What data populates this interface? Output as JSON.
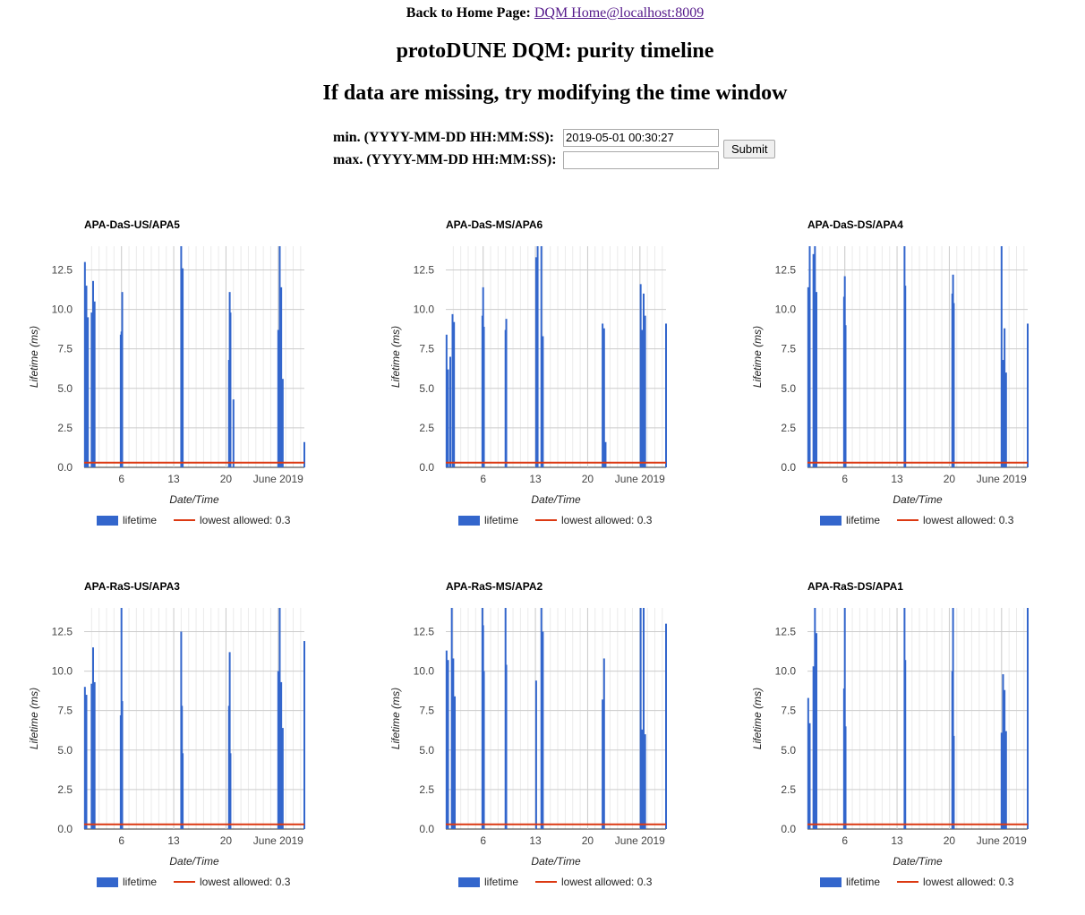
{
  "header": {
    "back_label": "Back to Home Page:",
    "home_link": "DQM Home@localhost:8009",
    "title": "protoDUNE DQM: purity timeline",
    "subtitle": "If data are missing, try modifying the time window"
  },
  "form": {
    "min_label": "min. (YYYY-MM-DD HH:MM:SS):",
    "min_value": "2019-05-01 00:30:27",
    "max_label": "max. (YYYY-MM-DD HH:MM:SS):",
    "max_value": "",
    "submit_label": "Submit"
  },
  "colors": {
    "lifetime": "#3366cc",
    "threshold": "#dc3912",
    "grid": "#cccccc"
  },
  "chart_data": [
    {
      "type": "bar",
      "title": "APA-DaS-US/APA5",
      "xlabel": "Date/Time",
      "ylabel": "Lifetime (ms)",
      "xlim": [
        1,
        30.5
      ],
      "ylim": [
        0,
        14
      ],
      "y_ticks": [
        0,
        2.5,
        5,
        7.5,
        10,
        12.5
      ],
      "x_ticks": [
        {
          "x": 6,
          "label": "6"
        },
        {
          "x": 13,
          "label": "13"
        },
        {
          "x": 20,
          "label": "20"
        },
        {
          "x": 27,
          "label": "June 2019"
        }
      ],
      "legend": [
        "lifetime",
        "lowest allowed: 0.3"
      ],
      "legend_position": "bottom",
      "grid": true,
      "threshold": 0.3,
      "series": [
        {
          "name": "lifetime",
          "x": [
            1.1,
            1.3,
            1.5,
            2.0,
            2.2,
            2.4,
            5.9,
            6.0,
            6.1,
            14.0,
            14.1,
            14.2,
            20.4,
            20.5,
            20.6,
            21.0,
            27.0,
            27.2,
            27.4,
            27.6,
            30.5
          ],
          "values": [
            13.0,
            11.5,
            9.5,
            9.8,
            11.8,
            10.5,
            8.4,
            8.6,
            11.1,
            14.0,
            10.8,
            12.6,
            6.8,
            11.1,
            9.8,
            4.3,
            8.7,
            14.0,
            11.4,
            5.6,
            1.6
          ]
        }
      ]
    },
    {
      "type": "bar",
      "title": "APA-DaS-MS/APA6",
      "xlabel": "Date/Time",
      "ylabel": "Lifetime (ms)",
      "xlim": [
        1,
        30.5
      ],
      "ylim": [
        0,
        14
      ],
      "y_ticks": [
        0,
        2.5,
        5,
        7.5,
        10,
        12.5
      ],
      "x_ticks": [
        {
          "x": 6,
          "label": "6"
        },
        {
          "x": 13,
          "label": "13"
        },
        {
          "x": 20,
          "label": "20"
        },
        {
          "x": 27,
          "label": "June 2019"
        }
      ],
      "legend": [
        "lifetime",
        "lowest allowed: 0.3"
      ],
      "legend_position": "bottom",
      "grid": true,
      "threshold": 0.3,
      "series": [
        {
          "name": "lifetime",
          "x": [
            1.1,
            1.3,
            1.6,
            1.9,
            2.1,
            5.9,
            6.0,
            6.1,
            9.0,
            9.1,
            13.1,
            13.3,
            13.8,
            14.0,
            22.0,
            22.2,
            22.4,
            27.1,
            27.3,
            27.5,
            27.7,
            30.5
          ],
          "values": [
            8.4,
            6.2,
            7.0,
            9.7,
            9.2,
            9.6,
            11.4,
            8.9,
            8.7,
            9.4,
            13.3,
            14.0,
            14.0,
            8.3,
            9.1,
            8.8,
            1.6,
            11.6,
            8.7,
            11.0,
            9.6,
            9.1
          ]
        }
      ]
    },
    {
      "type": "bar",
      "title": "APA-DaS-DS/APA4",
      "xlabel": "Date/Time",
      "ylabel": "Lifetime (ms)",
      "xlim": [
        1,
        30.5
      ],
      "ylim": [
        0,
        14
      ],
      "y_ticks": [
        0,
        2.5,
        5,
        7.5,
        10,
        12.5
      ],
      "x_ticks": [
        {
          "x": 6,
          "label": "6"
        },
        {
          "x": 13,
          "label": "13"
        },
        {
          "x": 20,
          "label": "20"
        },
        {
          "x": 27,
          "label": "June 2019"
        }
      ],
      "legend": [
        "lifetime",
        "lowest allowed: 0.3"
      ],
      "legend_position": "bottom",
      "grid": true,
      "threshold": 0.3,
      "series": [
        {
          "name": "lifetime",
          "x": [
            1.1,
            1.3,
            1.8,
            2.0,
            2.2,
            5.9,
            6.0,
            6.1,
            14.0,
            14.1,
            20.4,
            20.5,
            20.6,
            27.0,
            27.2,
            27.4,
            27.6,
            30.5
          ],
          "values": [
            11.4,
            14.0,
            13.5,
            14.0,
            11.1,
            10.8,
            12.1,
            9.0,
            14.0,
            11.5,
            11.0,
            12.2,
            10.4,
            14.0,
            6.8,
            8.8,
            6.0,
            9.1
          ]
        }
      ]
    },
    {
      "type": "bar",
      "title": "APA-RaS-US/APA3",
      "xlabel": "Date/Time",
      "ylabel": "Lifetime (ms)",
      "xlim": [
        1,
        30.5
      ],
      "ylim": [
        0,
        14
      ],
      "y_ticks": [
        0,
        2.5,
        5,
        7.5,
        10,
        12.5
      ],
      "x_ticks": [
        {
          "x": 6,
          "label": "6"
        },
        {
          "x": 13,
          "label": "13"
        },
        {
          "x": 20,
          "label": "20"
        },
        {
          "x": 27,
          "label": "June 2019"
        }
      ],
      "legend": [
        "lifetime",
        "lowest allowed: 0.3"
      ],
      "legend_position": "bottom",
      "grid": true,
      "threshold": 0.3,
      "series": [
        {
          "name": "lifetime",
          "x": [
            1.1,
            1.3,
            2.0,
            2.2,
            2.4,
            5.9,
            6.0,
            6.1,
            14.0,
            14.1,
            14.2,
            20.4,
            20.5,
            20.6,
            27.0,
            27.2,
            27.4,
            27.6,
            30.5
          ],
          "values": [
            9.0,
            8.5,
            9.2,
            11.5,
            9.3,
            7.2,
            14.0,
            8.1,
            12.5,
            7.8,
            4.8,
            7.8,
            11.2,
            4.8,
            10.0,
            14.0,
            9.3,
            6.4,
            11.9
          ]
        }
      ]
    },
    {
      "type": "bar",
      "title": "APA-RaS-MS/APA2",
      "xlabel": "Date/Time",
      "ylabel": "Lifetime (ms)",
      "xlim": [
        1,
        30.5
      ],
      "ylim": [
        0,
        14
      ],
      "y_ticks": [
        0,
        2.5,
        5,
        7.5,
        10,
        12.5
      ],
      "x_ticks": [
        {
          "x": 6,
          "label": "6"
        },
        {
          "x": 13,
          "label": "13"
        },
        {
          "x": 20,
          "label": "20"
        },
        {
          "x": 27,
          "label": "June 2019"
        }
      ],
      "legend": [
        "lifetime",
        "lowest allowed: 0.3"
      ],
      "legend_position": "bottom",
      "grid": true,
      "threshold": 0.3,
      "series": [
        {
          "name": "lifetime",
          "x": [
            1.1,
            1.3,
            1.8,
            2.0,
            2.2,
            5.9,
            6.0,
            6.1,
            9.0,
            9.1,
            13.1,
            13.8,
            14.0,
            22.0,
            22.2,
            27.1,
            27.3,
            27.5,
            27.7,
            30.5
          ],
          "values": [
            11.3,
            10.7,
            14.0,
            10.8,
            8.4,
            14.0,
            12.9,
            10.0,
            14.0,
            10.4,
            9.4,
            14.0,
            12.5,
            8.2,
            10.8,
            14.0,
            6.3,
            14.0,
            6.0,
            13.0
          ]
        }
      ]
    },
    {
      "type": "bar",
      "title": "APA-RaS-DS/APA1",
      "xlabel": "Date/Time",
      "ylabel": "Lifetime (ms)",
      "xlim": [
        1,
        30.5
      ],
      "ylim": [
        0,
        14
      ],
      "y_ticks": [
        0,
        2.5,
        5,
        7.5,
        10,
        12.5
      ],
      "x_ticks": [
        {
          "x": 6,
          "label": "6"
        },
        {
          "x": 13,
          "label": "13"
        },
        {
          "x": 20,
          "label": "20"
        },
        {
          "x": 27,
          "label": "June 2019"
        }
      ],
      "legend": [
        "lifetime",
        "lowest allowed: 0.3"
      ],
      "legend_position": "bottom",
      "grid": true,
      "threshold": 0.3,
      "series": [
        {
          "name": "lifetime",
          "x": [
            1.1,
            1.3,
            1.8,
            2.0,
            2.2,
            5.9,
            6.0,
            6.1,
            14.0,
            14.1,
            20.4,
            20.5,
            20.6,
            27.0,
            27.2,
            27.4,
            27.6,
            30.5
          ],
          "values": [
            8.3,
            6.7,
            10.3,
            14.0,
            12.4,
            8.9,
            14.0,
            6.5,
            14.0,
            10.7,
            10.0,
            14.0,
            5.9,
            6.1,
            9.8,
            8.8,
            6.2,
            14.0
          ]
        }
      ]
    }
  ]
}
